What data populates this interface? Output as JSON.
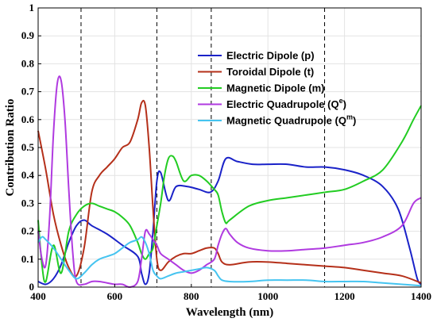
{
  "chart_data": {
    "type": "line",
    "xlabel": "Wavelength (nm)",
    "ylabel": "Contribution Ratio",
    "xlim": [
      400,
      1400
    ],
    "ylim": [
      0,
      1
    ],
    "xticks": [
      400,
      600,
      800,
      1000,
      1200,
      1400
    ],
    "yticks": [
      0,
      0.1,
      0.2,
      0.3,
      0.4,
      0.5,
      0.6,
      0.7,
      0.8,
      0.9,
      1
    ],
    "grid": true,
    "legend_position": "top-right",
    "vlines": [
      512,
      710,
      852,
      1148
    ],
    "series": [
      {
        "key": "p",
        "name": "Electric Dipole (p)",
        "color": "#1a22c8",
        "x": [
          400,
          420,
          440,
          460,
          480,
          500,
          520,
          540,
          580,
          620,
          660,
          670,
          680,
          690,
          700,
          710,
          720,
          740,
          760,
          790,
          820,
          850,
          870,
          890,
          920,
          960,
          1000,
          1050,
          1100,
          1150,
          1200,
          1250,
          1300,
          1340,
          1370,
          1390,
          1400
        ],
        "y": [
          0.02,
          0.01,
          0.03,
          0.08,
          0.16,
          0.22,
          0.24,
          0.22,
          0.19,
          0.15,
          0.11,
          0.05,
          0.01,
          0.05,
          0.2,
          0.38,
          0.41,
          0.31,
          0.36,
          0.36,
          0.35,
          0.34,
          0.38,
          0.46,
          0.45,
          0.44,
          0.44,
          0.44,
          0.43,
          0.43,
          0.42,
          0.4,
          0.36,
          0.28,
          0.14,
          0.03,
          0.01
        ]
      },
      {
        "key": "t",
        "name": "Toroidal Dipole (t)",
        "color": "#b5301a",
        "x": [
          400,
          420,
          440,
          460,
          480,
          500,
          520,
          540,
          560,
          580,
          600,
          620,
          640,
          660,
          670,
          680,
          690,
          700,
          710,
          720,
          740,
          760,
          780,
          800,
          820,
          840,
          860,
          870,
          880,
          900,
          950,
          1000,
          1050,
          1100,
          1150,
          1200,
          1250,
          1300,
          1350,
          1400
        ],
        "y": [
          0.56,
          0.42,
          0.26,
          0.15,
          0.07,
          0.04,
          0.14,
          0.34,
          0.4,
          0.43,
          0.46,
          0.5,
          0.52,
          0.6,
          0.66,
          0.65,
          0.5,
          0.28,
          0.1,
          0.06,
          0.09,
          0.11,
          0.12,
          0.12,
          0.13,
          0.14,
          0.14,
          0.12,
          0.09,
          0.08,
          0.09,
          0.09,
          0.085,
          0.08,
          0.075,
          0.07,
          0.06,
          0.05,
          0.04,
          0.015
        ]
      },
      {
        "key": "m",
        "name": "Magnetic Dipole (m)",
        "color": "#22cc22",
        "x": [
          400,
          410,
          420,
          440,
          460,
          480,
          500,
          520,
          540,
          560,
          580,
          600,
          620,
          640,
          660,
          670,
          680,
          690,
          700,
          710,
          720,
          730,
          740,
          750,
          760,
          780,
          800,
          820,
          840,
          860,
          870,
          880,
          890,
          900,
          950,
          1000,
          1050,
          1100,
          1150,
          1200,
          1250,
          1300,
          1350,
          1380,
          1400
        ],
        "y": [
          0.24,
          0.08,
          0.02,
          0.15,
          0.05,
          0.2,
          0.26,
          0.29,
          0.3,
          0.29,
          0.28,
          0.27,
          0.25,
          0.22,
          0.16,
          0.12,
          0.1,
          0.12,
          0.14,
          0.22,
          0.3,
          0.4,
          0.46,
          0.47,
          0.45,
          0.38,
          0.4,
          0.4,
          0.38,
          0.35,
          0.33,
          0.27,
          0.23,
          0.24,
          0.29,
          0.31,
          0.32,
          0.33,
          0.34,
          0.35,
          0.38,
          0.42,
          0.52,
          0.6,
          0.65
        ]
      },
      {
        "key": "qe",
        "name": "Electric Quadrupole (Q",
        "sup": "e",
        "color": "#b03ae0",
        "x": [
          400,
          410,
          420,
          430,
          440,
          450,
          460,
          470,
          480,
          490,
          500,
          520,
          540,
          560,
          580,
          600,
          620,
          640,
          660,
          670,
          680,
          690,
          700,
          710,
          720,
          740,
          760,
          780,
          800,
          820,
          840,
          860,
          870,
          880,
          890,
          900,
          920,
          950,
          1000,
          1050,
          1100,
          1150,
          1200,
          1250,
          1300,
          1350,
          1380,
          1400
        ],
        "y": [
          0.2,
          0.1,
          0.08,
          0.25,
          0.55,
          0.73,
          0.74,
          0.6,
          0.35,
          0.13,
          0.02,
          0.01,
          0.02,
          0.02,
          0.015,
          0.01,
          0.01,
          0.0,
          0.02,
          0.1,
          0.2,
          0.19,
          0.17,
          0.15,
          0.12,
          0.1,
          0.08,
          0.06,
          0.05,
          0.06,
          0.08,
          0.1,
          0.15,
          0.19,
          0.21,
          0.19,
          0.16,
          0.14,
          0.13,
          0.13,
          0.135,
          0.14,
          0.15,
          0.16,
          0.18,
          0.22,
          0.3,
          0.32
        ]
      },
      {
        "key": "qm",
        "name": "Magnetic Quadrupole (Q",
        "sup": "m",
        "color": "#45c4f0",
        "x": [
          400,
          410,
          420,
          440,
          460,
          480,
          500,
          520,
          540,
          560,
          580,
          600,
          620,
          640,
          660,
          670,
          680,
          690,
          700,
          710,
          720,
          740,
          760,
          780,
          800,
          820,
          840,
          860,
          870,
          880,
          900,
          950,
          1000,
          1050,
          1100,
          1150,
          1200,
          1250,
          1300,
          1350,
          1400
        ],
        "y": [
          0.16,
          0.18,
          0.17,
          0.14,
          0.1,
          0.06,
          0.03,
          0.05,
          0.08,
          0.1,
          0.11,
          0.12,
          0.14,
          0.16,
          0.17,
          0.18,
          0.16,
          0.12,
          0.06,
          0.04,
          0.03,
          0.04,
          0.05,
          0.055,
          0.06,
          0.065,
          0.07,
          0.06,
          0.04,
          0.025,
          0.02,
          0.02,
          0.025,
          0.025,
          0.025,
          0.02,
          0.02,
          0.02,
          0.015,
          0.01,
          0.005
        ]
      }
    ]
  }
}
